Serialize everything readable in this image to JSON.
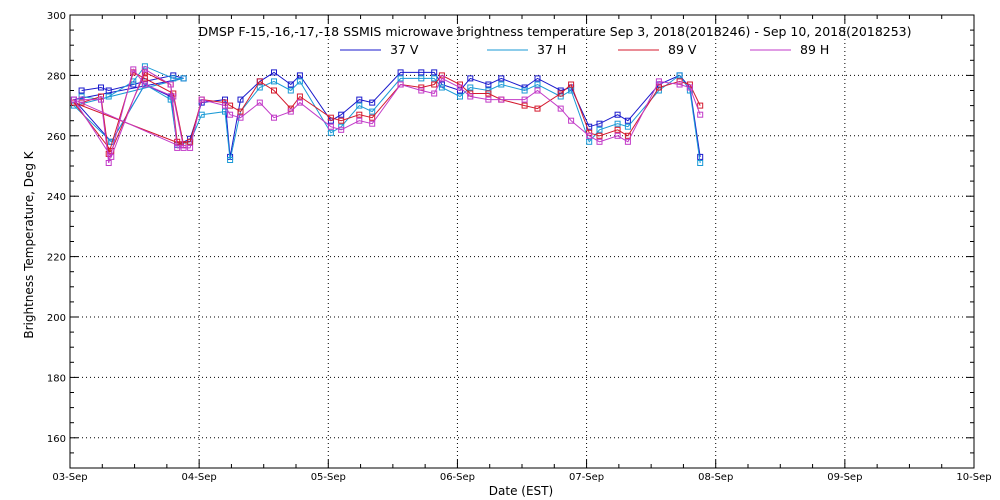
{
  "chart_data": {
    "type": "line",
    "title": "DMSP F-15,-16,-17,-18 SSMIS microwave brightness temperature Sep  3, 2018(2018246) - Sep 10, 2018(2018253)",
    "xlabel": "Date (EST)",
    "ylabel": "Brightness Temperature, Deg K",
    "x_ticks": [
      "03-Sep",
      "04-Sep",
      "05-Sep",
      "06-Sep",
      "07-Sep",
      "08-Sep",
      "09-Sep",
      "10-Sep"
    ],
    "xlim": [
      0,
      7
    ],
    "x_unit": "days since 03-Sep",
    "ylim": [
      150,
      300
    ],
    "y_ticks": [
      160,
      180,
      200,
      220,
      240,
      260,
      280,
      300
    ],
    "grid": true,
    "legend_position": "top-center",
    "series": [
      {
        "name": "37 V",
        "color": "#1a1acc",
        "x": [
          0.09,
          0.24,
          0.3,
          0.49,
          0.58,
          0.8,
          0.88,
          0.03,
          0.32,
          0.58,
          0.78,
          0.83,
          0.93,
          1.02,
          1.2,
          1.24,
          1.32,
          1.47,
          1.58,
          1.71,
          1.78,
          2.02,
          2.1,
          2.24,
          2.34,
          2.56,
          2.72,
          2.82,
          2.88,
          3.02,
          3.1,
          3.24,
          3.34,
          3.52,
          3.62,
          3.8,
          3.88,
          4.02,
          4.1,
          4.24,
          4.32,
          4.56,
          4.72,
          4.8,
          4.88
        ],
        "y": [
          275,
          276,
          275,
          277,
          278,
          280,
          279,
          272,
          258,
          277,
          273,
          257,
          259,
          271,
          272,
          253,
          272,
          278,
          281,
          277,
          280,
          265,
          267,
          272,
          271,
          281,
          281,
          281,
          277,
          275,
          279,
          277,
          279,
          276,
          279,
          275,
          276,
          263,
          264,
          267,
          265,
          277,
          280,
          276,
          253
        ]
      },
      {
        "name": "37 H",
        "color": "#1a9ad6",
        "x": [
          0.09,
          0.24,
          0.3,
          0.49,
          0.58,
          0.8,
          0.88,
          0.03,
          0.32,
          0.58,
          0.78,
          0.83,
          0.93,
          1.02,
          1.2,
          1.24,
          1.32,
          1.47,
          1.58,
          1.71,
          1.78,
          2.02,
          2.1,
          2.24,
          2.34,
          2.56,
          2.72,
          2.82,
          2.88,
          3.02,
          3.1,
          3.24,
          3.34,
          3.52,
          3.62,
          3.8,
          3.88,
          4.02,
          4.1,
          4.24,
          4.32,
          4.56,
          4.72,
          4.8,
          4.88
        ],
        "y": [
          273,
          272,
          273,
          278,
          283,
          279,
          279,
          270,
          258,
          277,
          272,
          257,
          258,
          267,
          268,
          252,
          268,
          276,
          278,
          275,
          278,
          261,
          263,
          270,
          268,
          279,
          279,
          279,
          276,
          273,
          276,
          275,
          277,
          275,
          277,
          273,
          275,
          258,
          262,
          264,
          263,
          275,
          280,
          275,
          251
        ]
      },
      {
        "name": "89 V",
        "color": "#d41a2e",
        "x": [
          0.09,
          0.24,
          0.3,
          0.49,
          0.58,
          0.8,
          0.88,
          0.03,
          0.32,
          0.58,
          0.78,
          0.83,
          0.93,
          1.02,
          1.2,
          1.24,
          1.32,
          1.47,
          1.58,
          1.71,
          1.78,
          2.02,
          2.1,
          2.24,
          2.34,
          2.56,
          2.72,
          2.82,
          2.88,
          3.02,
          3.1,
          3.24,
          3.34,
          3.52,
          3.62,
          3.8,
          3.88,
          4.02,
          4.1,
          4.24,
          4.32,
          4.56,
          4.72,
          4.8,
          4.88
        ],
        "y": [
          271,
          273,
          254,
          281,
          279,
          274,
          257,
          271,
          255,
          281,
          277,
          258,
          258,
          272,
          271,
          270,
          268,
          278,
          275,
          269,
          273,
          266,
          265,
          267,
          266,
          277,
          276,
          277,
          280,
          277,
          274,
          274,
          272,
          270,
          269,
          274,
          277,
          261,
          260,
          262,
          260,
          276,
          278,
          277,
          270
        ]
      },
      {
        "name": "89 H",
        "color": "#c23ac8",
        "x": [
          0.09,
          0.24,
          0.3,
          0.49,
          0.58,
          0.8,
          0.88,
          0.03,
          0.32,
          0.58,
          0.78,
          0.83,
          0.93,
          1.02,
          1.2,
          1.24,
          1.32,
          1.47,
          1.58,
          1.71,
          1.78,
          2.02,
          2.1,
          2.24,
          2.34,
          2.56,
          2.72,
          2.82,
          2.88,
          3.02,
          3.1,
          3.24,
          3.34,
          3.52,
          3.62,
          3.8,
          3.88,
          4.02,
          4.1,
          4.24,
          4.32,
          4.56,
          4.72,
          4.8,
          4.88
        ],
        "y": [
          272,
          272,
          251,
          282,
          277,
          273,
          256,
          272,
          253,
          282,
          277,
          256,
          256,
          272,
          270,
          267,
          266,
          271,
          266,
          268,
          271,
          263,
          262,
          265,
          264,
          277,
          275,
          274,
          279,
          276,
          273,
          272,
          272,
          272,
          275,
          269,
          265,
          260,
          258,
          260,
          258,
          278,
          277,
          276,
          267
        ]
      }
    ]
  }
}
